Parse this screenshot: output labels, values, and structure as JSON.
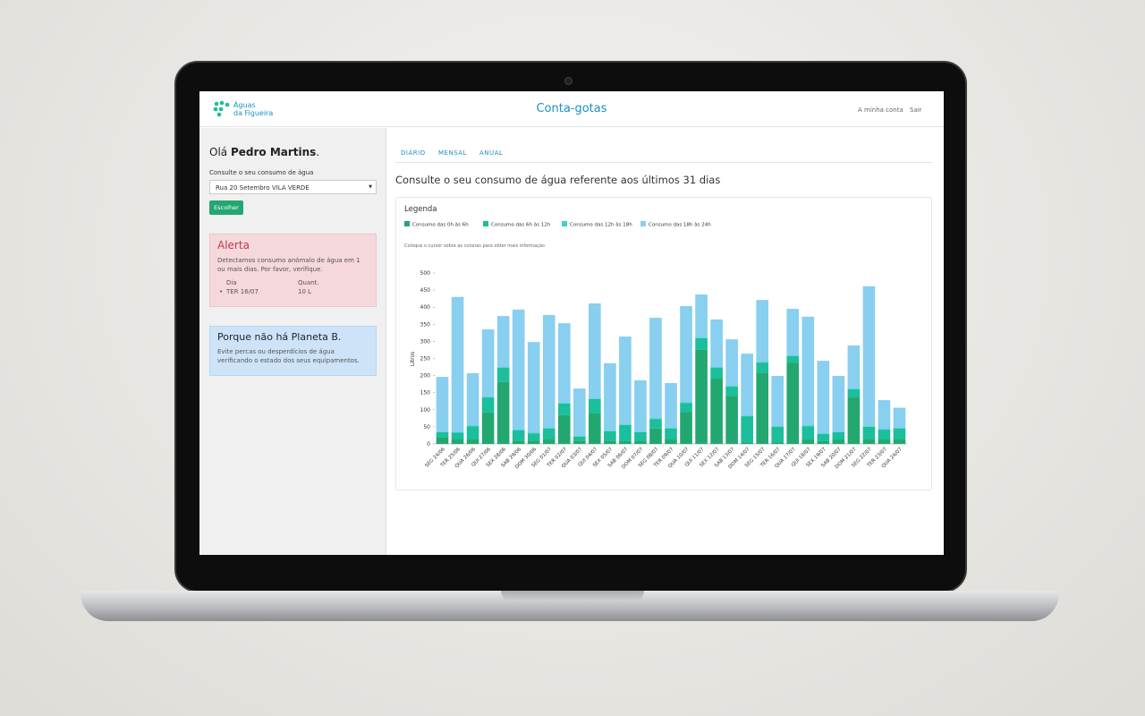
{
  "header": {
    "logo": [
      "Águas",
      "da Figueira"
    ],
    "title": "Conta-gotas",
    "links": [
      "A minha conta",
      "Sair"
    ]
  },
  "sidebar": {
    "greeting": "Olá",
    "user": "Pedro Martins",
    "punct": ".",
    "label": "Consulte o seu consumo de água",
    "select": "Rua 20 Setembro VILA VERDE",
    "button": "Escolher",
    "alert": {
      "title": "Alerta",
      "text": "Detectamos consumo anómalo de água em 1 ou mais dias. Por favor, verifique.",
      "columns": [
        "Dia",
        "Quant."
      ],
      "rows": [
        [
          "TER 16/07",
          "10 L"
        ]
      ]
    },
    "info": {
      "title": "Porque não há Planeta B.",
      "text": "Evite percas ou desperdícios de água verificando o estado dos seus equipamentos."
    }
  },
  "tabs": [
    "DIÁRIO",
    "MENSAL",
    "ANUAL"
  ],
  "heading": "Consulte o seu consumo de água referente aos últimos 31 dias",
  "legend_title": "Legenda",
  "hint": "Coloque o cursor sobre as colunas para obter mais informação",
  "chart_data": {
    "type": "stacked_bar",
    "y_label": "Litros",
    "categories": [
      "SEG 24/06",
      "TER 25/06",
      "QUA 26/06",
      "QUI 27/06",
      "SEX 28/06",
      "SAB 29/06",
      "DOM 30/06",
      "SEG 01/07",
      "TER 02/07",
      "QUA 03/07",
      "QUI 04/07",
      "SEX 05/07",
      "SAB 06/07",
      "DOM 07/07",
      "SEG 08/07",
      "TER 09/07",
      "QUA 10/07",
      "QUI 11/07",
      "SEX 12/07",
      "SAB 13/07",
      "DOM 14/07",
      "SEG 15/07",
      "TER 16/07",
      "QUA 17/07",
      "QUI 18/07",
      "SEX 19/07",
      "SAB 20/07",
      "DOM 21/07",
      "SEG 22/07",
      "TER 23/07",
      "QUA 24/07"
    ],
    "series": [
      {
        "name": "Consumo das 0h às 6h",
        "color": "#23a771",
        "values": [
          20,
          13,
          13,
          92,
          181,
          10,
          10,
          13,
          84,
          10,
          89,
          10,
          8,
          10,
          45,
          13,
          94,
          275,
          191,
          141,
          5,
          209,
          5,
          238,
          13,
          8,
          13,
          136,
          13,
          13,
          13
        ]
      },
      {
        "name": "Consumo das 6h às 12h",
        "color": "#1bbf9b",
        "values": [
          14,
          20,
          39,
          44,
          42,
          30,
          21,
          32,
          34,
          11,
          42,
          27,
          47,
          24,
          28,
          32,
          26,
          34,
          32,
          27,
          76,
          29,
          45,
          19,
          39,
          21,
          21,
          24,
          37,
          29,
          32
        ]
      },
      {
        "name": "Consumo das 12h às 18h",
        "color": "#3ad1d0",
        "values": [
          2,
          2,
          2,
          2,
          2,
          2,
          2,
          2,
          2,
          2,
          2,
          2,
          2,
          2,
          2,
          2,
          2,
          2,
          2,
          2,
          2,
          2,
          2,
          2,
          2,
          2,
          2,
          2,
          2,
          2,
          2
        ]
      },
      {
        "name": "Consumo das 18h às 24h",
        "color": "#88cff0",
        "values": [
          160,
          395,
          153,
          197,
          149,
          351,
          265,
          330,
          233,
          139,
          278,
          197,
          257,
          150,
          294,
          131,
          281,
          126,
          139,
          136,
          181,
          181,
          147,
          136,
          318,
          212,
          163,
          126,
          409,
          84,
          59
        ]
      }
    ],
    "ylim": [
      0,
      500
    ],
    "yticks": [
      0,
      50,
      100,
      150,
      200,
      250,
      300,
      350,
      400,
      450,
      500
    ]
  }
}
